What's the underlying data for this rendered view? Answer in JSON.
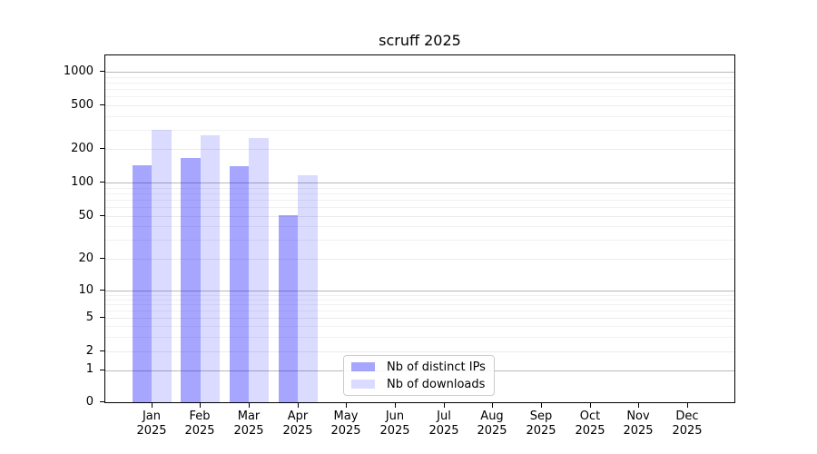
{
  "title": "scruff 2025",
  "chart_data": {
    "type": "bar",
    "title": "scruff 2025",
    "scale": "symlog",
    "grid": true,
    "legend_position": "bottom-center",
    "ylim": [
      0,
      1400
    ],
    "yticks": [
      0,
      1,
      2,
      5,
      10,
      20,
      50,
      100,
      200,
      500,
      1000
    ],
    "y_minor_ticks": [
      3,
      4,
      6,
      7,
      8,
      9,
      30,
      40,
      60,
      70,
      80,
      90,
      300,
      400,
      600,
      700,
      800,
      900
    ],
    "x_categories": [
      {
        "month": "Jan",
        "year": "2025"
      },
      {
        "month": "Feb",
        "year": "2025"
      },
      {
        "month": "Mar",
        "year": "2025"
      },
      {
        "month": "Apr",
        "year": "2025"
      },
      {
        "month": "May",
        "year": "2025"
      },
      {
        "month": "Jun",
        "year": "2025"
      },
      {
        "month": "Jul",
        "year": "2025"
      },
      {
        "month": "Aug",
        "year": "2025"
      },
      {
        "month": "Sep",
        "year": "2025"
      },
      {
        "month": "Oct",
        "year": "2025"
      },
      {
        "month": "Nov",
        "year": "2025"
      },
      {
        "month": "Dec",
        "year": "2025"
      }
    ],
    "series": [
      {
        "name": "Nb of distinct IPs",
        "color": "#a6a6ff",
        "fill": "rgba(0,0,255,0.35)",
        "values": [
          143,
          167,
          141,
          51,
          null,
          null,
          null,
          null,
          null,
          null,
          null,
          null
        ]
      },
      {
        "name": "Nb of downloads",
        "color": "#dcdcff",
        "fill": "rgba(0,0,255,0.14)",
        "values": [
          300,
          268,
          252,
          116,
          null,
          null,
          null,
          null,
          null,
          null,
          null,
          null
        ]
      }
    ]
  },
  "colors": {
    "major_gridline": "#b9b9b9",
    "labeled_gridline": "#ebebeb",
    "minor_gridline": "#f1f1f1",
    "spine": "#000000",
    "background": "#ffffff"
  }
}
